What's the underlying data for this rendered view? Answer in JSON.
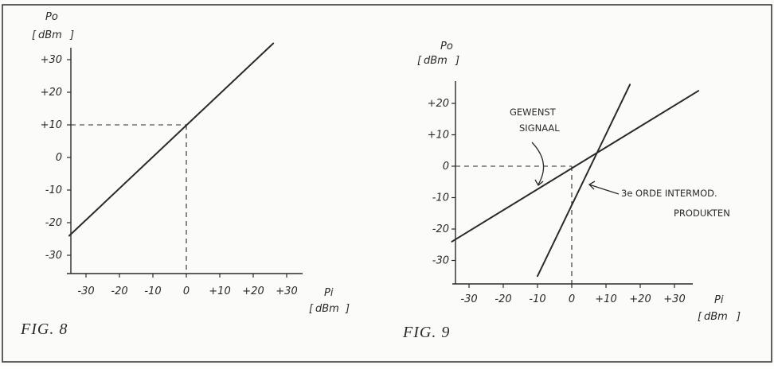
{
  "chart_data": [
    {
      "type": "line",
      "caption": "FIG. 8",
      "ylabel": "Po",
      "yunit": "dBm",
      "xlabel": "Pi",
      "xunit": "dBm",
      "xlim": [
        -35,
        35
      ],
      "ylim": [
        -35,
        35
      ],
      "xticks": [
        -30,
        -20,
        -10,
        0,
        10,
        20,
        30
      ],
      "yticks": [
        30,
        20,
        10,
        0,
        -10,
        -20,
        -30
      ],
      "xtick_labels": [
        "-30",
        "-20",
        "-10",
        "0",
        "+10",
        "+20",
        "+30"
      ],
      "ytick_labels": [
        "+30",
        "+20",
        "+10",
        "0",
        "-10",
        "-20",
        "-30"
      ],
      "series": [
        {
          "x": [
            -35,
            26
          ],
          "y": [
            -24,
            35
          ]
        }
      ],
      "reference_point": {
        "x": 0,
        "y": 10
      }
    },
    {
      "type": "line",
      "caption": "FIG. 9",
      "ylabel": "Po",
      "yunit": "dBm",
      "xlabel": "Pi",
      "xunit": "dBm",
      "xlim": [
        -35,
        38
      ],
      "ylim": [
        -35,
        25
      ],
      "xticks": [
        -30,
        -20,
        -10,
        0,
        10,
        20,
        30
      ],
      "yticks": [
        20,
        10,
        0,
        -10,
        -20,
        -30
      ],
      "xtick_labels": [
        "-30",
        "-20",
        "-10",
        "0",
        "+10",
        "+20",
        "+30"
      ],
      "ytick_labels": [
        "+20",
        "+10",
        "0",
        "-10",
        "-20",
        "-30"
      ],
      "series": [
        {
          "x": [
            -35,
            37
          ],
          "y": [
            -24,
            24
          ]
        },
        {
          "x": [
            -10,
            17
          ],
          "y": [
            -35,
            26
          ]
        }
      ],
      "reference_point": {
        "x": 0,
        "y": 0
      },
      "annotations": [
        {
          "lines": [
            "GEWENST",
            "SIGNAAL"
          ]
        },
        {
          "lines": [
            "3e ORDE INTERMOD.",
            "PRODUKTEN"
          ]
        }
      ]
    }
  ]
}
